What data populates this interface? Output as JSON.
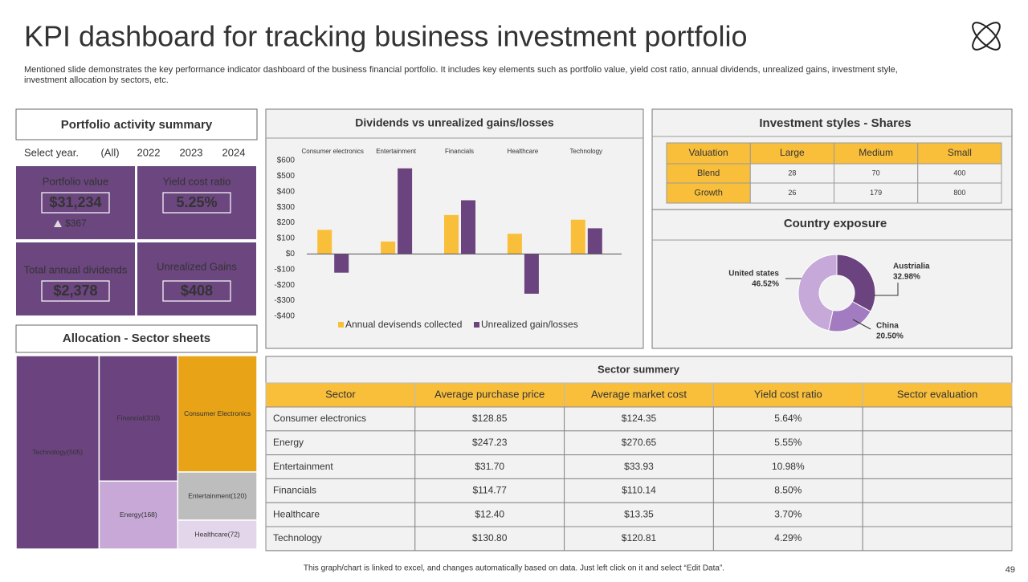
{
  "header": {
    "title": "KPI dashboard for tracking business investment portfolio",
    "subtitle_lines": [
      "Mentioned slide demonstrates the key performance indicator dashboard of the business financial portfolio. It includes key elements such as portfolio value, yield cost ratio, annual dividends, unrealized gains, investment style,",
      "investment allocation by sectors, etc."
    ]
  },
  "summary": {
    "title": "Portfolio activity summary",
    "filter_label": "Select year.",
    "filter_options": [
      "(All)",
      "2022",
      "2023",
      "2024"
    ],
    "kpis": [
      {
        "label": "Portfolio value",
        "value": "$31,234",
        "change": "$367"
      },
      {
        "label": "Yield cost ratio",
        "value": "5.25%"
      },
      {
        "label": "Total annual dividends",
        "value": "$2,378"
      },
      {
        "label": "Unrealized Gains",
        "value": "$408"
      }
    ]
  },
  "chart_data": [
    {
      "type": "bar",
      "title": "Dividends vs unrealized gains/losses",
      "categories": [
        "Consumer electronics",
        "Entertainment",
        "Financials",
        "Healthcare",
        "Technology"
      ],
      "series": [
        {
          "name": "Annual devisends collected",
          "color": "#f9bf3b",
          "values": [
            155,
            80,
            250,
            130,
            220
          ]
        },
        {
          "name": "Unrealized gain/losses",
          "color": "#6b437f",
          "values": [
            -120,
            550,
            345,
            -255,
            165
          ]
        }
      ],
      "ylim": [
        -400,
        600
      ],
      "yticks": [
        {
          "value": -400,
          "label": "-$400"
        },
        {
          "value": -300,
          "label": "-$300"
        },
        {
          "value": -200,
          "label": "-$200"
        },
        {
          "value": -100,
          "label": "-$100"
        },
        {
          "value": 0,
          "label": "$0"
        },
        {
          "value": 100,
          "label": "$100"
        },
        {
          "value": 200,
          "label": "$200"
        },
        {
          "value": 300,
          "label": "$300"
        },
        {
          "value": 400,
          "label": "$400"
        },
        {
          "value": 500,
          "label": "$500"
        },
        {
          "value": 600,
          "label": "$600"
        }
      ],
      "grid": false,
      "legend": "bottom"
    },
    {
      "type": "treemap",
      "title": "Allocation - Sector sheets",
      "labels": [
        "Technology(505)",
        "Financial(310)",
        "Energy(168)",
        "Consumer Electronics",
        "Entertainment(120)",
        "Healthcare(72)"
      ],
      "values": [
        505,
        310,
        168,
        290,
        120,
        72
      ],
      "colors": [
        "#6b437f",
        "#6b437f",
        "#c7a8d6",
        "#e8a317",
        "#bdbdbd",
        "#e3d5ea"
      ]
    },
    {
      "type": "pie",
      "title": "Country exposure",
      "donut": true,
      "categories": [
        "Austrialia",
        "China",
        "United states"
      ],
      "values": [
        32.98,
        20.5,
        46.52
      ],
      "value_labels": [
        "32.98%",
        "20.50%",
        "46.52%"
      ],
      "colors": [
        "#6b437f",
        "#a37bc0",
        "#c6a9d8"
      ]
    }
  ],
  "styles_table": {
    "title": "Investment styles - Shares",
    "header": [
      "Valuation",
      "Large",
      "Medium",
      "Small"
    ],
    "rows": [
      [
        "Blend",
        28,
        70,
        400
      ],
      [
        "Growth",
        26,
        179,
        800
      ]
    ]
  },
  "sector_table": {
    "title": "Sector summery",
    "header": [
      "Sector",
      "Average purchase price",
      "Average market cost",
      "Yield cost ratio",
      "Sector evaluation"
    ],
    "rows": [
      [
        "Consumer electronics",
        "$128.85",
        "$124.35",
        "5.64%"
      ],
      [
        "Energy",
        "$247.23",
        "$270.65",
        "5.55%"
      ],
      [
        "Entertainment",
        "$31.70",
        "$33.93",
        "10.98%"
      ],
      [
        "Financials",
        "$114.77",
        "$110.14",
        "8.50%"
      ],
      [
        "Healthcare",
        "$12.40",
        "$13.35",
        "3.70%"
      ],
      [
        "Technology",
        "$130.80",
        "$120.81",
        "4.29%"
      ]
    ]
  },
  "footer": {
    "note": "This graph/chart is linked to excel, and changes automatically based on data. Just left click on it and select “Edit Data”.",
    "page": "49"
  }
}
